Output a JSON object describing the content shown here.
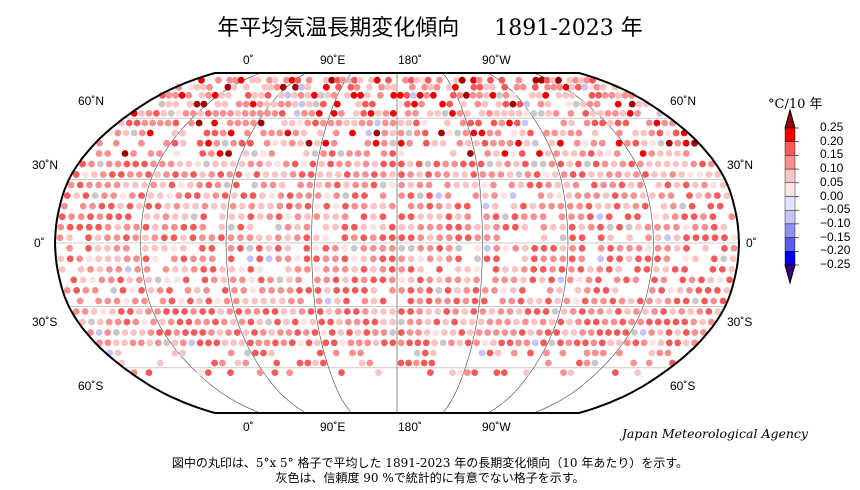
{
  "title": {
    "main": "年平均気温長期変化傾向",
    "period": "1891-2023 年"
  },
  "map": {
    "lon_labels_top": [
      "0˚",
      "90˚E",
      "180˚",
      "90˚W"
    ],
    "lon_labels_bottom": [
      "0˚",
      "90˚E",
      "180˚",
      "90˚W"
    ],
    "lat_labels_left": [
      "60˚N",
      "30˚N",
      "0˚",
      "30˚S",
      "60˚S"
    ],
    "lat_labels_right": [
      "60˚N",
      "30˚N",
      "0˚",
      "30˚S",
      "60˚S"
    ]
  },
  "legend": {
    "unit": "°C/10 年",
    "ticks": [
      "0.25",
      "0.20",
      "0.15",
      "0.10",
      "0.05",
      "0.00",
      "−0.05",
      "−0.10",
      "−0.15",
      "−0.20",
      "−0.25"
    ],
    "colors": [
      "#a00000",
      "#ee0000",
      "#f45a5a",
      "#f79090",
      "#fbc4c4",
      "#fde4e4",
      "#e2e2ff",
      "#c4c4f6",
      "#9090ee",
      "#5a5aee",
      "#0000ee",
      "#3a0080"
    ],
    "insignificant_color": "#c8c8c8"
  },
  "credit": "Japan Meteorological Agency",
  "notes": [
    "図中の丸印は、5°x 5° 格子で平均した 1891-2023 年の長期変化傾向（10 年あたり）を示す。",
    "灰色は、信頼度 90 %で統計的に有意でない格子を示す。"
  ]
}
